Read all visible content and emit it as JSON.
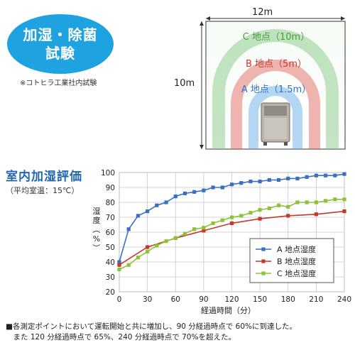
{
  "badge": {
    "line1": "加湿・除菌",
    "line2": "試験",
    "note": "※コトヒラ工業社内試験"
  },
  "room": {
    "width_label": "12m",
    "height_label": "10m",
    "points": [
      {
        "label": "C 地点（10m）",
        "color": "#7cc57a"
      },
      {
        "label": "B 地点（5m）",
        "color": "#e05a52"
      },
      {
        "label": "A 地点（1.5m）",
        "color": "#5aa6e8"
      }
    ]
  },
  "chart_title": "室内加湿評価",
  "chart_subtitle": "（平均室温：15℃）",
  "footnote": "■各測定ポイントにおいて運転開始と共に増加し、90 分経過時点で 60%に到達した。\n　また 120 分経過時点で 65%、240 分経過時点で 70%を超えた。",
  "chart_data": {
    "type": "line",
    "title": "室内加湿評価",
    "xlabel": "経過時間（分）",
    "ylabel": "湿度（%）",
    "xlim": [
      0,
      240
    ],
    "ylim": [
      20,
      100
    ],
    "x_ticks": [
      0,
      30,
      60,
      90,
      120,
      150,
      180,
      210,
      240
    ],
    "y_ticks": [
      20,
      30,
      40,
      50,
      60,
      70,
      80,
      90,
      100
    ],
    "grid": true,
    "legend_position": "bottom-right",
    "series": [
      {
        "name": "A 地点湿度",
        "color": "#3a6fc2",
        "marker": "square",
        "x": [
          0,
          10,
          20,
          30,
          40,
          50,
          60,
          70,
          80,
          90,
          100,
          110,
          120,
          130,
          140,
          150,
          160,
          170,
          180,
          190,
          200,
          210,
          220,
          230,
          240
        ],
        "y": [
          40,
          62,
          71,
          74,
          78,
          80,
          84,
          86,
          87,
          88,
          90,
          90,
          92,
          93,
          94,
          94,
          95,
          95,
          96,
          96,
          97,
          98,
          98,
          98,
          99
        ]
      },
      {
        "name": "B 地点湿度",
        "color": "#c0392b",
        "marker": "square",
        "x": [
          0,
          30,
          60,
          90,
          120,
          150,
          180,
          210,
          240
        ],
        "y": [
          38,
          50,
          56,
          61,
          66,
          69,
          71,
          72,
          74
        ]
      },
      {
        "name": "C 地点湿度",
        "color": "#8fc23a",
        "marker": "square",
        "x": [
          0,
          10,
          20,
          30,
          40,
          50,
          60,
          70,
          80,
          90,
          100,
          110,
          120,
          130,
          140,
          150,
          160,
          170,
          180,
          190,
          200,
          210,
          220,
          230,
          240
        ],
        "y": [
          35,
          38,
          43,
          47,
          51,
          54,
          56,
          59,
          62,
          63,
          66,
          68,
          70,
          71,
          73,
          75,
          76,
          78,
          77,
          80,
          80,
          80,
          81,
          82,
          82
        ]
      }
    ]
  }
}
